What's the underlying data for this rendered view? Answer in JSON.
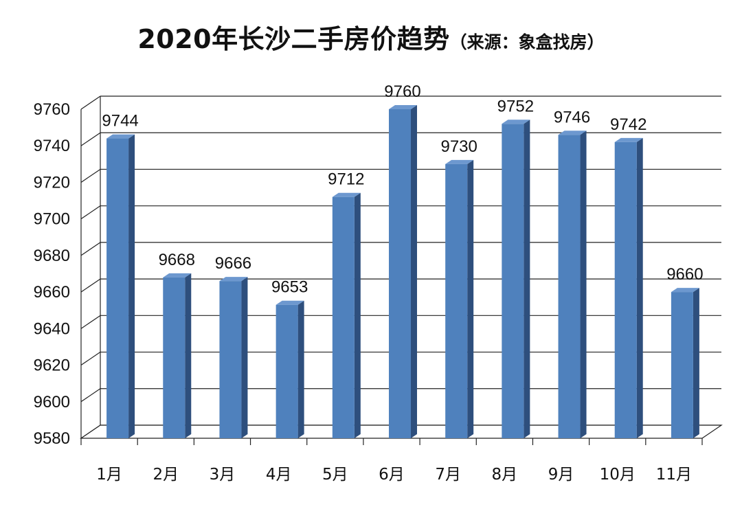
{
  "chart_data": {
    "type": "bar",
    "title": "2020年长沙二手房价趋势",
    "subtitle": "（来源：象盒找房）",
    "categories": [
      "1月",
      "2月",
      "3月",
      "4月",
      "5月",
      "6月",
      "7月",
      "8月",
      "9月",
      "10月",
      "11月"
    ],
    "values": [
      9744,
      9668,
      9666,
      9653,
      9712,
      9760,
      9730,
      9752,
      9746,
      9742,
      9660
    ],
    "data_labels": [
      "9744",
      "9668",
      "9666",
      "9653",
      "9712",
      "9760",
      "9730",
      "9752",
      "9746",
      "9742",
      "9660"
    ],
    "yticks": [
      "9760",
      "9740",
      "9720",
      "9700",
      "9680",
      "9660",
      "9640",
      "9620",
      "9600",
      "9580"
    ],
    "ylim": [
      9580,
      9760
    ],
    "grid": true,
    "style": "3d-bar",
    "bar_color": "#4f81bd",
    "bar_side_color": "#2e4f7d",
    "bar_top_color": "#6d98cf"
  }
}
